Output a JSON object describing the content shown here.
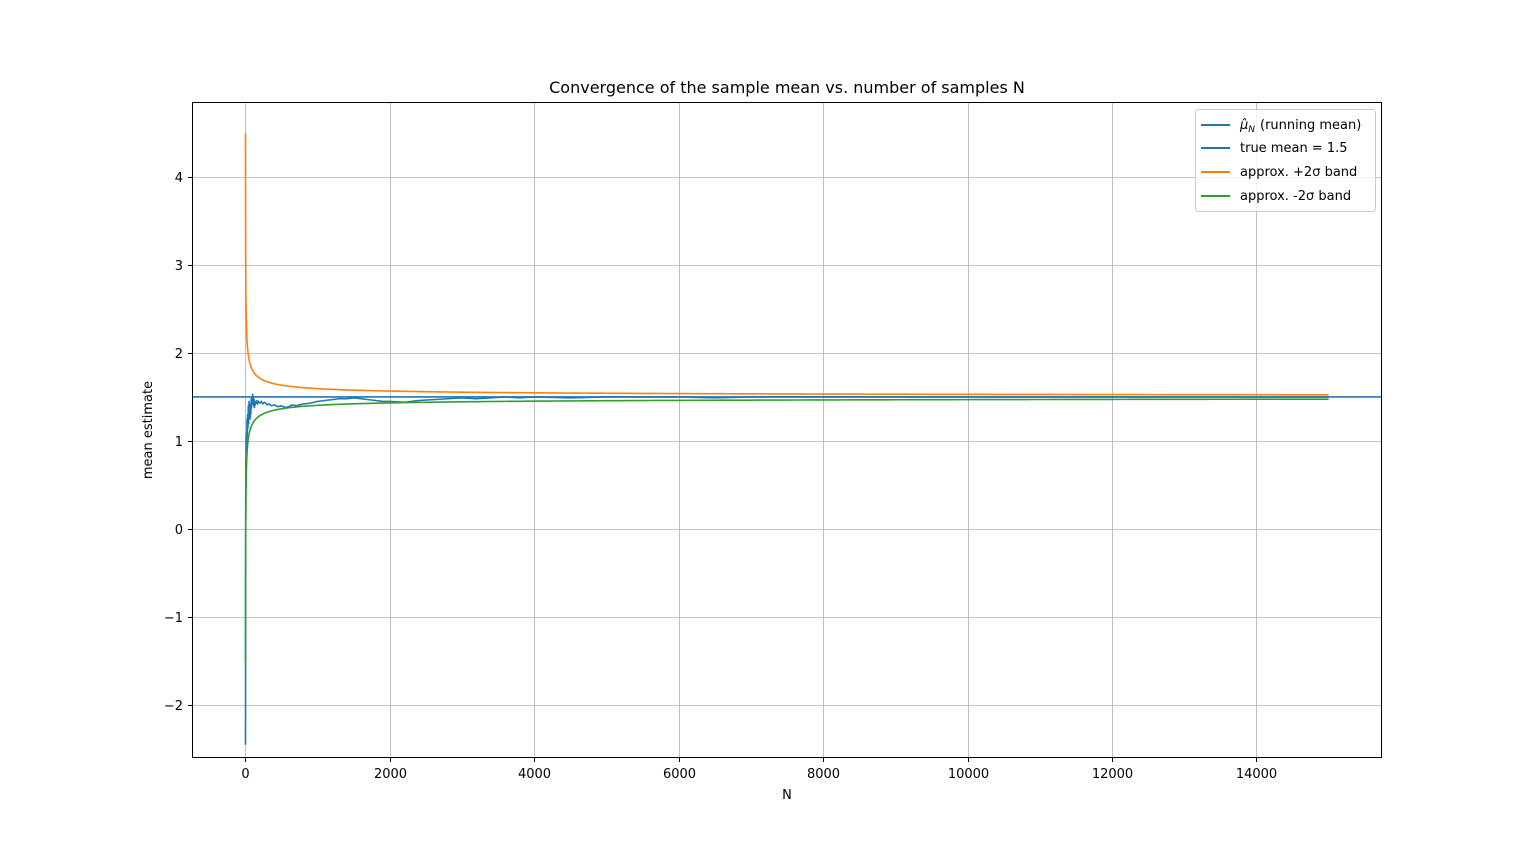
{
  "chart_data": {
    "type": "line",
    "title": "Convergence of the sample mean vs. number of samples N",
    "xlabel": "N",
    "ylabel": "mean estimate",
    "xlim": [
      -740,
      15740
    ],
    "ylim": [
      -2.6,
      4.85
    ],
    "xticks": [
      0,
      2000,
      4000,
      6000,
      8000,
      10000,
      12000,
      14000
    ],
    "xtick_labels": [
      "0",
      "2000",
      "4000",
      "6000",
      "8000",
      "10000",
      "12000",
      "14000"
    ],
    "yticks": [
      -2,
      -1,
      0,
      1,
      2,
      3,
      4
    ],
    "ytick_labels": [
      "−2",
      "−1",
      "0",
      "1",
      "2",
      "3",
      "4"
    ],
    "grid": true,
    "legend_position": "top-right",
    "true_mean": 1.5,
    "band_width_2sigma": 3.0,
    "n_max": 15000,
    "series": [
      {
        "name": "(running mean)",
        "legend_prefix": "μ̂",
        "legend_subscript": "N",
        "color": "#1f77b4",
        "x": [
          1,
          2,
          3,
          4,
          5,
          6,
          8,
          10,
          12,
          15,
          18,
          22,
          26,
          30,
          35,
          40,
          45,
          50,
          55,
          60,
          65,
          70,
          75,
          80,
          85,
          90,
          95,
          100,
          105,
          110,
          115,
          120,
          125,
          130,
          135,
          140,
          150,
          160,
          170,
          180,
          190,
          200,
          220,
          240,
          260,
          280,
          300,
          330,
          360,
          400,
          450,
          500,
          550,
          600,
          650,
          700,
          800,
          900,
          1000,
          1100,
          1200,
          1300,
          1400,
          1500,
          1600,
          1700,
          1800,
          1900,
          2000,
          2200,
          2400,
          2600,
          2800,
          3000,
          3200,
          3400,
          3600,
          3800,
          4000,
          4500,
          5000,
          5500,
          6000,
          6500,
          7000,
          8000,
          9000,
          10000,
          11000,
          12000,
          13000,
          14000,
          15000
        ],
        "y": [
          -2.45,
          -1.5,
          -0.3,
          0.4,
          0.1,
          0.8,
          0.5,
          1.05,
          0.7,
          1.1,
          0.95,
          1.25,
          1.05,
          1.3,
          1.15,
          1.4,
          1.2,
          1.45,
          1.3,
          1.35,
          1.25,
          1.42,
          1.3,
          1.48,
          1.38,
          1.5,
          1.42,
          1.53,
          1.45,
          1.5,
          1.4,
          1.47,
          1.38,
          1.44,
          1.41,
          1.45,
          1.43,
          1.46,
          1.42,
          1.45,
          1.44,
          1.43,
          1.45,
          1.42,
          1.44,
          1.43,
          1.41,
          1.42,
          1.4,
          1.41,
          1.39,
          1.4,
          1.38,
          1.39,
          1.41,
          1.4,
          1.42,
          1.43,
          1.45,
          1.46,
          1.47,
          1.48,
          1.48,
          1.49,
          1.48,
          1.47,
          1.46,
          1.45,
          1.45,
          1.44,
          1.46,
          1.47,
          1.48,
          1.49,
          1.48,
          1.49,
          1.5,
          1.49,
          1.5,
          1.49,
          1.5,
          1.5,
          1.5,
          1.49,
          1.5,
          1.5,
          1.5,
          1.5,
          1.5,
          1.5,
          1.5,
          1.5,
          1.5
        ]
      },
      {
        "name": "true mean = 1.5",
        "color": "#1f77b4",
        "y": 1.5
      },
      {
        "name": "approx. +2σ band",
        "color": "#ff7f0e",
        "formula": "1.5 + 3/sqrt(N)"
      },
      {
        "name": "approx. -2σ band",
        "color": "#2ca02c",
        "formula": "1.5 - 3/sqrt(N)"
      }
    ]
  }
}
